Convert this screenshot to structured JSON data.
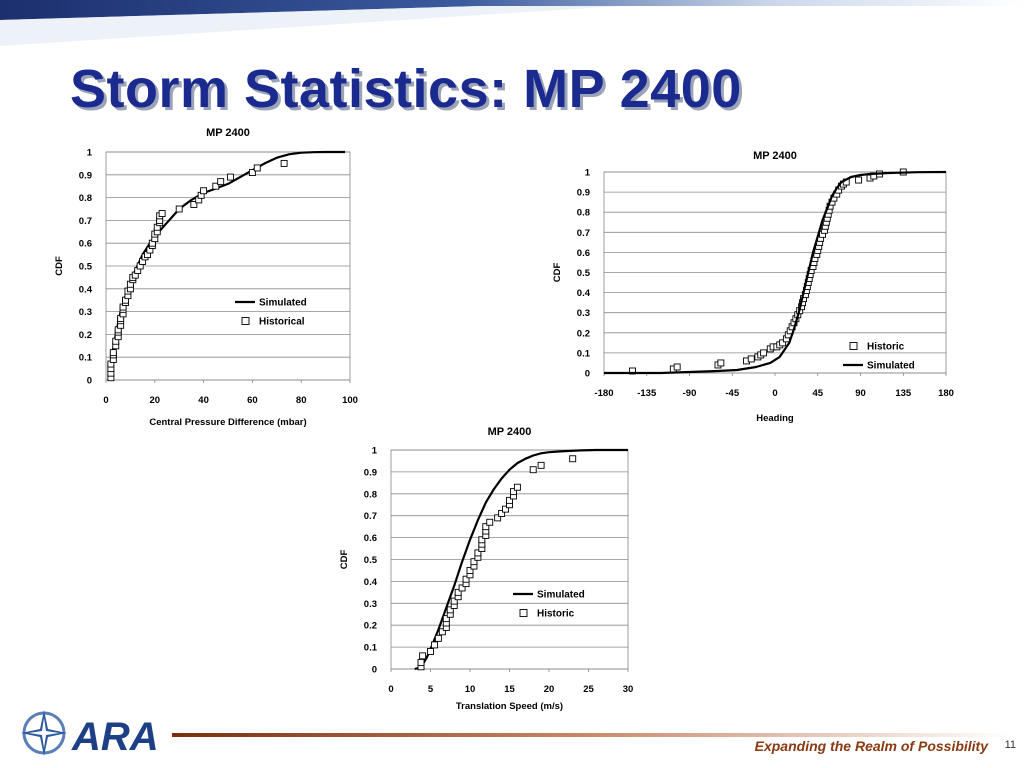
{
  "slide": {
    "title": "Storm Statistics: MP 2400",
    "tagline": "Expanding the Realm of Possibility",
    "page_number": "11",
    "logo_text": "ARA",
    "colors": {
      "title": "#1a2a8e",
      "footer": "#8a3a12",
      "band": "#1c2f6e"
    }
  },
  "chart_data": [
    {
      "type": "line",
      "title": "MP 2400",
      "xlabel": "Central Pressure Difference (mbar)",
      "ylabel": "CDF",
      "xlim": [
        0,
        100
      ],
      "ylim": [
        0,
        1
      ],
      "xticks": [
        "0",
        "20",
        "40",
        "60",
        "80",
        "100"
      ],
      "yticks": [
        "0",
        "0.1",
        "0.2",
        "0.3",
        "0.4",
        "0.5",
        "0.6",
        "0.7",
        "0.8",
        "0.9",
        "1"
      ],
      "grid": true,
      "legend": "center-right",
      "series": [
        {
          "name": "Simulated",
          "style": "line",
          "x": [
            1,
            2,
            3,
            4,
            5,
            6,
            8,
            10,
            12,
            15,
            18,
            20,
            25,
            30,
            35,
            40,
            45,
            50,
            55,
            60,
            65,
            70,
            75,
            80,
            85,
            90,
            95,
            98
          ],
          "y": [
            0.02,
            0.08,
            0.14,
            0.2,
            0.25,
            0.3,
            0.37,
            0.43,
            0.48,
            0.55,
            0.6,
            0.63,
            0.69,
            0.75,
            0.79,
            0.82,
            0.84,
            0.86,
            0.89,
            0.92,
            0.95,
            0.975,
            0.99,
            0.997,
            0.999,
            1.0,
            1.0,
            1.0
          ]
        },
        {
          "name": "Historical",
          "style": "marker",
          "x": [
            2,
            2,
            2,
            2,
            3,
            3,
            3,
            4,
            4,
            5,
            5,
            5,
            6,
            6,
            6,
            7,
            7,
            7,
            8,
            8,
            9,
            9,
            10,
            10,
            11,
            11,
            12,
            13,
            14,
            15,
            16,
            17,
            18,
            19,
            19,
            20,
            20,
            21,
            21,
            22,
            22,
            22,
            23,
            30,
            36,
            38,
            39,
            40,
            45,
            47,
            51,
            60,
            62,
            73
          ],
          "y": [
            0.01,
            0.03,
            0.05,
            0.07,
            0.09,
            0.11,
            0.12,
            0.15,
            0.17,
            0.19,
            0.21,
            0.22,
            0.24,
            0.26,
            0.27,
            0.29,
            0.31,
            0.32,
            0.34,
            0.35,
            0.37,
            0.39,
            0.4,
            0.42,
            0.44,
            0.45,
            0.46,
            0.48,
            0.5,
            0.52,
            0.54,
            0.55,
            0.57,
            0.59,
            0.6,
            0.62,
            0.64,
            0.65,
            0.67,
            0.69,
            0.7,
            0.72,
            0.73,
            0.75,
            0.77,
            0.79,
            0.81,
            0.83,
            0.85,
            0.87,
            0.89,
            0.91,
            0.93,
            0.95
          ]
        }
      ]
    },
    {
      "type": "line",
      "title": "MP 2400",
      "xlabel": "Heading",
      "ylabel": "CDF",
      "xlim": [
        -180,
        180
      ],
      "ylim": [
        0,
        1
      ],
      "xticks": [
        "-180",
        "-135",
        "-90",
        "-45",
        "0",
        "45",
        "90",
        "135",
        "180"
      ],
      "yticks": [
        "0",
        "0.1",
        "0.2",
        "0.3",
        "0.4",
        "0.5",
        "0.6",
        "0.7",
        "0.8",
        "0.9",
        "1"
      ],
      "grid": true,
      "legend": "bottom-right",
      "series": [
        {
          "name": "Historic",
          "style": "marker",
          "x": [
            -150,
            -107,
            -103,
            -60,
            -57,
            -30,
            -25,
            -18,
            -15,
            -12,
            -5,
            -2,
            2,
            5,
            8,
            12,
            14,
            16,
            18,
            20,
            22,
            24,
            26,
            28,
            29,
            30,
            32,
            33,
            34,
            35,
            36,
            37,
            38,
            40,
            41,
            42,
            44,
            45,
            46,
            47,
            48,
            50,
            52,
            53,
            54,
            55,
            56,
            57,
            58,
            60,
            62,
            65,
            67,
            70,
            72,
            75,
            88,
            100,
            104,
            110,
            135
          ],
          "y": [
            0.01,
            0.02,
            0.03,
            0.04,
            0.05,
            0.06,
            0.07,
            0.08,
            0.09,
            0.1,
            0.12,
            0.13,
            0.13,
            0.14,
            0.15,
            0.17,
            0.19,
            0.21,
            0.23,
            0.25,
            0.27,
            0.29,
            0.31,
            0.33,
            0.35,
            0.37,
            0.39,
            0.41,
            0.43,
            0.45,
            0.47,
            0.49,
            0.51,
            0.53,
            0.55,
            0.57,
            0.59,
            0.61,
            0.63,
            0.65,
            0.67,
            0.69,
            0.71,
            0.73,
            0.75,
            0.77,
            0.79,
            0.81,
            0.83,
            0.85,
            0.87,
            0.89,
            0.91,
            0.93,
            0.94,
            0.95,
            0.96,
            0.97,
            0.98,
            0.99,
            1.0
          ]
        },
        {
          "name": "Simulated",
          "style": "line",
          "x": [
            -180,
            -120,
            -90,
            -60,
            -40,
            -20,
            -5,
            5,
            15,
            20,
            25,
            30,
            35,
            40,
            45,
            50,
            55,
            60,
            65,
            70,
            80,
            90,
            100,
            120,
            150,
            180
          ],
          "y": [
            0.0,
            0.0,
            0.005,
            0.01,
            0.015,
            0.03,
            0.05,
            0.08,
            0.15,
            0.22,
            0.3,
            0.4,
            0.5,
            0.6,
            0.68,
            0.76,
            0.82,
            0.88,
            0.92,
            0.95,
            0.975,
            0.985,
            0.99,
            0.995,
            0.999,
            1.0
          ]
        }
      ]
    },
    {
      "type": "line",
      "title": "MP 2400",
      "xlabel": "Translation Speed (m/s)",
      "ylabel": "CDF",
      "xlim": [
        0,
        30
      ],
      "ylim": [
        0,
        1
      ],
      "xticks": [
        "0",
        "5",
        "10",
        "15",
        "20",
        "25",
        "30"
      ],
      "yticks": [
        "0",
        "0.1",
        "0.2",
        "0.3",
        "0.4",
        "0.5",
        "0.6",
        "0.7",
        "0.8",
        "0.9",
        "1"
      ],
      "grid": true,
      "legend": "center-right",
      "series": [
        {
          "name": "Simulated",
          "style": "line",
          "x": [
            3,
            3.5,
            4,
            4.5,
            5,
            6,
            7,
            8,
            9,
            10,
            11,
            12,
            13,
            14,
            15,
            16,
            17,
            18,
            19,
            20,
            22,
            24,
            26,
            28,
            30
          ],
          "y": [
            0.0,
            0.005,
            0.02,
            0.05,
            0.09,
            0.18,
            0.28,
            0.38,
            0.49,
            0.59,
            0.68,
            0.76,
            0.82,
            0.87,
            0.91,
            0.94,
            0.96,
            0.975,
            0.985,
            0.99,
            0.995,
            0.998,
            1.0,
            1.0,
            1.0
          ]
        },
        {
          "name": "Historic",
          "style": "marker",
          "x": [
            3.8,
            3.8,
            4,
            5,
            5.5,
            6,
            6.5,
            7,
            7,
            7,
            7.5,
            7.5,
            8,
            8,
            8.5,
            8.5,
            9,
            9.5,
            9.5,
            10,
            10,
            10.5,
            10.5,
            11,
            11,
            11.5,
            11.5,
            11.5,
            12,
            12,
            12,
            12.5,
            13.5,
            14,
            14.5,
            15,
            15,
            15.5,
            15.5,
            16,
            18,
            19,
            23
          ],
          "y": [
            0.01,
            0.03,
            0.06,
            0.08,
            0.11,
            0.14,
            0.17,
            0.19,
            0.21,
            0.23,
            0.25,
            0.27,
            0.29,
            0.31,
            0.33,
            0.35,
            0.37,
            0.39,
            0.41,
            0.43,
            0.45,
            0.47,
            0.49,
            0.51,
            0.53,
            0.55,
            0.57,
            0.59,
            0.61,
            0.63,
            0.65,
            0.67,
            0.69,
            0.71,
            0.73,
            0.75,
            0.77,
            0.79,
            0.81,
            0.83,
            0.91,
            0.93,
            0.96
          ]
        }
      ]
    }
  ]
}
